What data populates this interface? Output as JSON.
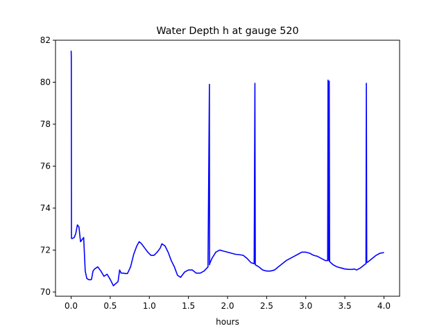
{
  "chart_data": {
    "type": "line",
    "title": "Water Depth h at gauge 520",
    "xlabel": "hours",
    "ylabel": "",
    "xlim": [
      -0.2,
      4.2
    ],
    "ylim": [
      69.8,
      82.0
    ],
    "x_ticks": [
      0.0,
      0.5,
      1.0,
      1.5,
      2.0,
      2.5,
      3.0,
      3.5,
      4.0
    ],
    "x_tick_labels": [
      "0.0",
      "0.5",
      "1.0",
      "1.5",
      "2.0",
      "2.5",
      "3.0",
      "3.5",
      "4.0"
    ],
    "y_ticks": [
      70,
      72,
      74,
      76,
      78,
      80,
      82
    ],
    "y_tick_labels": [
      "70",
      "72",
      "74",
      "76",
      "78",
      "80",
      "82"
    ],
    "grid": false,
    "series": [
      {
        "color": "#0000ff",
        "x": [
          0.0,
          0.002,
          0.004,
          0.006,
          0.008,
          0.01,
          0.02,
          0.04,
          0.06,
          0.08,
          0.1,
          0.12,
          0.14,
          0.16,
          0.18,
          0.2,
          0.22,
          0.24,
          0.26,
          0.28,
          0.3,
          0.34,
          0.38,
          0.42,
          0.46,
          0.5,
          0.54,
          0.57,
          0.6,
          0.62,
          0.64,
          0.66,
          0.67,
          0.69,
          0.72,
          0.76,
          0.8,
          0.84,
          0.87,
          0.9,
          0.94,
          0.98,
          1.02,
          1.06,
          1.1,
          1.14,
          1.16,
          1.2,
          1.24,
          1.28,
          1.32,
          1.36,
          1.4,
          1.45,
          1.5,
          1.55,
          1.6,
          1.65,
          1.7,
          1.75,
          1.768,
          1.77,
          1.772,
          1.8,
          1.85,
          1.9,
          1.95,
          2.0,
          2.05,
          2.1,
          2.15,
          2.2,
          2.25,
          2.3,
          2.34,
          2.35,
          2.355,
          2.4,
          2.45,
          2.5,
          2.55,
          2.6,
          2.65,
          2.7,
          2.75,
          2.8,
          2.85,
          2.9,
          2.95,
          3.0,
          3.05,
          3.1,
          3.15,
          3.2,
          3.25,
          3.28,
          3.285,
          3.295,
          3.3,
          3.305,
          3.35,
          3.4,
          3.45,
          3.5,
          3.55,
          3.6,
          3.62,
          3.65,
          3.7,
          3.75,
          3.77,
          3.775,
          3.78,
          3.8,
          3.85,
          3.9,
          3.95,
          4.0
        ],
        "y": [
          81.5,
          81.2,
          72.6,
          72.55,
          72.55,
          72.55,
          72.56,
          72.6,
          72.8,
          73.2,
          73.1,
          72.4,
          72.5,
          72.6,
          71.0,
          70.65,
          70.6,
          70.58,
          70.6,
          71.0,
          71.1,
          71.2,
          71.0,
          70.75,
          70.85,
          70.6,
          70.3,
          70.4,
          70.5,
          71.05,
          70.9,
          70.9,
          70.9,
          70.88,
          70.88,
          71.2,
          71.8,
          72.2,
          72.4,
          72.3,
          72.1,
          71.9,
          71.75,
          71.75,
          71.9,
          72.1,
          72.3,
          72.2,
          71.9,
          71.5,
          71.2,
          70.8,
          70.7,
          70.95,
          71.05,
          71.05,
          70.9,
          70.9,
          71.0,
          71.2,
          79.9,
          71.3,
          71.35,
          71.6,
          71.9,
          72.0,
          71.95,
          71.9,
          71.85,
          71.8,
          71.78,
          71.75,
          71.6,
          71.4,
          71.35,
          79.95,
          71.3,
          71.2,
          71.05,
          71.0,
          71.0,
          71.05,
          71.2,
          71.35,
          71.5,
          71.6,
          71.7,
          71.8,
          71.9,
          71.9,
          71.85,
          71.75,
          71.7,
          71.6,
          71.5,
          71.5,
          80.1,
          71.5,
          80.05,
          71.45,
          71.3,
          71.2,
          71.15,
          71.1,
          71.08,
          71.08,
          71.1,
          71.05,
          71.15,
          71.3,
          71.35,
          79.95,
          71.4,
          71.45,
          71.6,
          71.75,
          71.85,
          71.88
        ]
      }
    ]
  }
}
